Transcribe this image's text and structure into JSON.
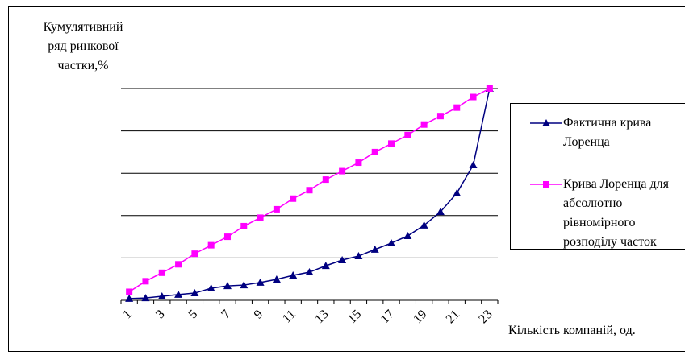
{
  "chart_data": {
    "type": "line",
    "ylabel": [
      "Кумулятивний",
      "ряд ринкової",
      "частки,%"
    ],
    "xlabel": "Кількість компаній, од.",
    "categories": [
      1,
      null,
      3,
      null,
      5,
      null,
      7,
      null,
      9,
      null,
      11,
      null,
      13,
      null,
      15,
      null,
      17,
      null,
      19,
      null,
      21,
      null,
      23
    ],
    "series": [
      {
        "name": "Фактична крива Лоренца",
        "color": "#000080",
        "marker": "triangle",
        "values": [
          0.8,
          1.1,
          1.9,
          2.7,
          3.4,
          5.7,
          6.8,
          7.2,
          8.4,
          9.9,
          11.8,
          13.3,
          16.3,
          19,
          20.9,
          24,
          27,
          30.4,
          35.4,
          41.8,
          50.6,
          63.9,
          100
        ]
      },
      {
        "name": "Крива Лоренца для абсолютно рівномірного розподілу часток",
        "color": "#ff00ff",
        "marker": "square",
        "values": [
          4,
          9,
          13,
          17,
          22,
          26,
          30,
          35,
          39,
          43,
          48,
          52,
          57,
          61,
          65,
          70,
          74,
          78,
          83,
          87,
          91,
          96,
          100
        ]
      }
    ],
    "ylim": [
      0,
      100
    ],
    "yticks": [
      0,
      20,
      40,
      60,
      80,
      100
    ],
    "grid": true
  }
}
